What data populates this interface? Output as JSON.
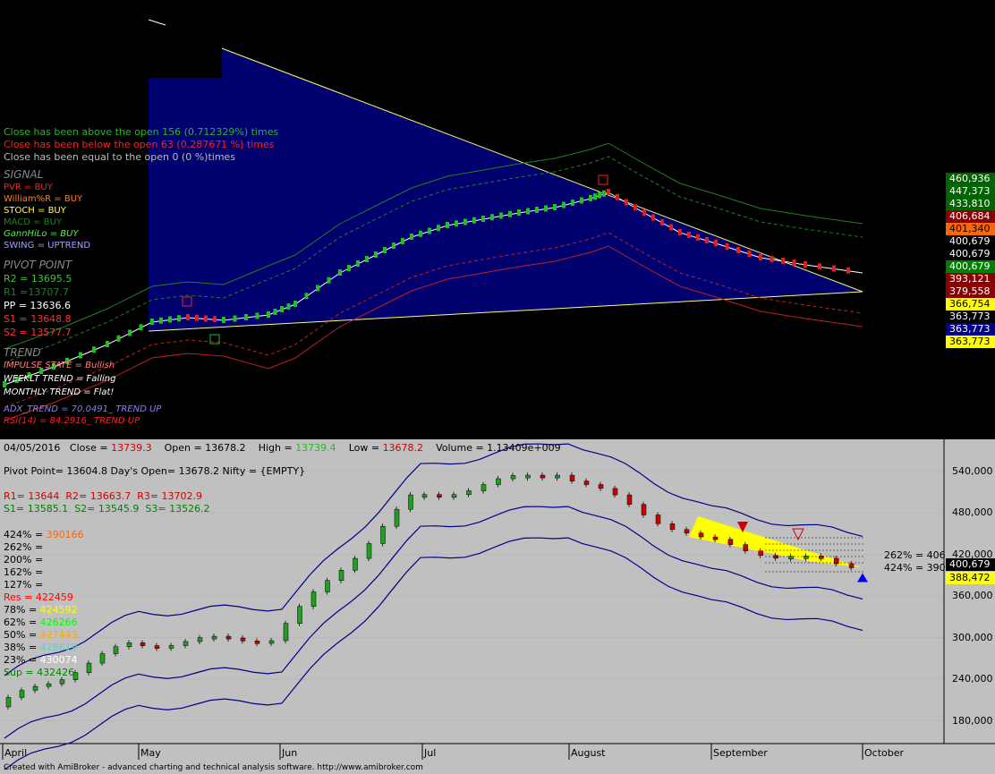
{
  "top_stats": {
    "above": "Close has been above the open 156 (0.712329%) times",
    "below": "Close has been below the open 63 (0.287671 %) times",
    "equal": "Close has been equal to the open 0 (0 %)times"
  },
  "signal": {
    "title": "SIGNAL",
    "pvr": "PVR = BUY",
    "williams": "William%R = BUY",
    "stoch": "STOCH = BUY",
    "macd": "MACD = BUY",
    "gann": "GannHiLo = BUY",
    "swing": "SWING = UPTREND"
  },
  "pivot": {
    "title": "PIVOT POINT",
    "r2": "R2 = 13695.5",
    "r1": "R1 =13707.7",
    "pp": "PP = 13636.6",
    "s1": "S1 = 13648.8",
    "s2": "S2 = 13577.7"
  },
  "trend": {
    "title": "TREND",
    "impulse": "IMPULSE STATE = Bullish",
    "weekly": "WEEKLT TREND = Falling",
    "monthly": "MONTHLY TREND = Flat!",
    "adx": "ADX_TREND = 70.0491_ TREND UP",
    "rsi": "RSI(14) = 84.2916_ TREND UP"
  },
  "upper_badges": [
    {
      "text": "460,936",
      "bg": "#006400",
      "fg": "#ffffff"
    },
    {
      "text": "447,373",
      "bg": "#006400",
      "fg": "#ffffff"
    },
    {
      "text": "433,810",
      "bg": "#006400",
      "fg": "#ffffff"
    },
    {
      "text": "406,684",
      "bg": "#8b0000",
      "fg": "#ffffff"
    },
    {
      "text": "401,340",
      "bg": "#ff6600",
      "fg": "#000000"
    },
    {
      "text": "400,679",
      "bg": "#000000",
      "fg": "#ffffff"
    },
    {
      "text": "400,679",
      "bg": "#000000",
      "fg": "#ffffff"
    },
    {
      "text": "400,679",
      "bg": "#008000",
      "fg": "#ffffff"
    },
    {
      "text": "393,121",
      "bg": "#8b0000",
      "fg": "#ffffff"
    },
    {
      "text": "379,558",
      "bg": "#8b0000",
      "fg": "#ffffff"
    },
    {
      "text": "366,754",
      "bg": "#ffff00",
      "fg": "#000000"
    },
    {
      "text": "363,773",
      "bg": "#000000",
      "fg": "#ffffff"
    },
    {
      "text": "363,773",
      "bg": "#00008b",
      "fg": "#ffffff"
    },
    {
      "text": "363,773",
      "bg": "#ffff00",
      "fg": "#000000"
    }
  ],
  "lower_header": {
    "date": "04/05/2016",
    "close_label": "Close =",
    "close": "13739.3",
    "open_label": "Open =",
    "open": "13678.2",
    "high_label": "High =",
    "high": "13739.4",
    "low_label": "Low =",
    "low": "13678.2",
    "volume": "Volume = 1.13409e+009"
  },
  "pivot_line": "Pivot Point= 13604.8     Day's Open= 13678.2     Nifty = {EMPTY}",
  "rlevels": {
    "r1": "R1= 13644",
    "r2": "R2= 13663.7",
    "r3": "R3= 13702.9"
  },
  "slevels": {
    "s1": "S1= 13585.1",
    "s2": "S2= 13545.9",
    "s3": "S3= 13526.2"
  },
  "fib_levels": [
    {
      "label": "424% =",
      "value": "390166",
      "color": "#ff6600"
    },
    {
      "label": "262% =",
      "value": "",
      "color": "#000000"
    },
    {
      "label": "200% =",
      "value": "",
      "color": "#000000"
    },
    {
      "label": "162% =",
      "value": "",
      "color": "#000000"
    },
    {
      "label": "127% =",
      "value": "",
      "color": "#000000"
    }
  ],
  "res_levels": [
    {
      "label": "Res   =",
      "value": "422459",
      "lcolor": "#ff0000",
      "vcolor": "#ff0000"
    },
    {
      "label": "78%  =",
      "value": "424592",
      "lcolor": "#000000",
      "vcolor": "#ffff00"
    },
    {
      "label": "62%  =",
      "value": "426266",
      "lcolor": "#000000",
      "vcolor": "#00ff00"
    },
    {
      "label": "50%  =",
      "value": "427443",
      "lcolor": "#000000",
      "vcolor": "#ffa500"
    },
    {
      "label": "38%  =",
      "value": "428619",
      "lcolor": "#000000",
      "vcolor": "#66cccc"
    },
    {
      "label": "23%  =",
      "value": "430074",
      "lcolor": "#000000",
      "vcolor": "#ffffff"
    },
    {
      "label": "Sup  =",
      "value": "432426",
      "lcolor": "#008000",
      "vcolor": "#008000"
    }
  ],
  "lower_axis": [
    "540,000",
    "480,000",
    "420,000",
    "360,000",
    "300,000",
    "240,000",
    "180,000"
  ],
  "lower_badges": [
    {
      "text": "400,679",
      "bg": "#000000",
      "fg": "#ffffff"
    },
    {
      "text": "388,472",
      "bg": "#ffff00",
      "fg": "#000000"
    }
  ],
  "right_side_labels": [
    "262% = 406",
    "424% = 390"
  ],
  "months": [
    "April",
    "May",
    "Jun",
    "Jul",
    "August",
    "September",
    "October"
  ],
  "footer": "Created with AmiBroker - advanced charting and technical analysis software. http://www.amibroker.com",
  "colors": {
    "upper_bg": "#000000",
    "lower_bg": "#c0c0c0",
    "fill": "#00006e",
    "trendline": "#ffff66",
    "band": "#00008b"
  },
  "chart_data": {
    "type": "line",
    "title": "",
    "xlabel": "",
    "ylabel": "",
    "x": [
      "April",
      "May",
      "Jun",
      "Jul",
      "August",
      "September",
      "October"
    ],
    "ylim": [
      160000,
      560000
    ],
    "series": [
      {
        "name": "",
        "values": [
          200000,
          290000,
          300000,
          500000,
          540000,
          440000,
          400679
        ]
      }
    ]
  }
}
